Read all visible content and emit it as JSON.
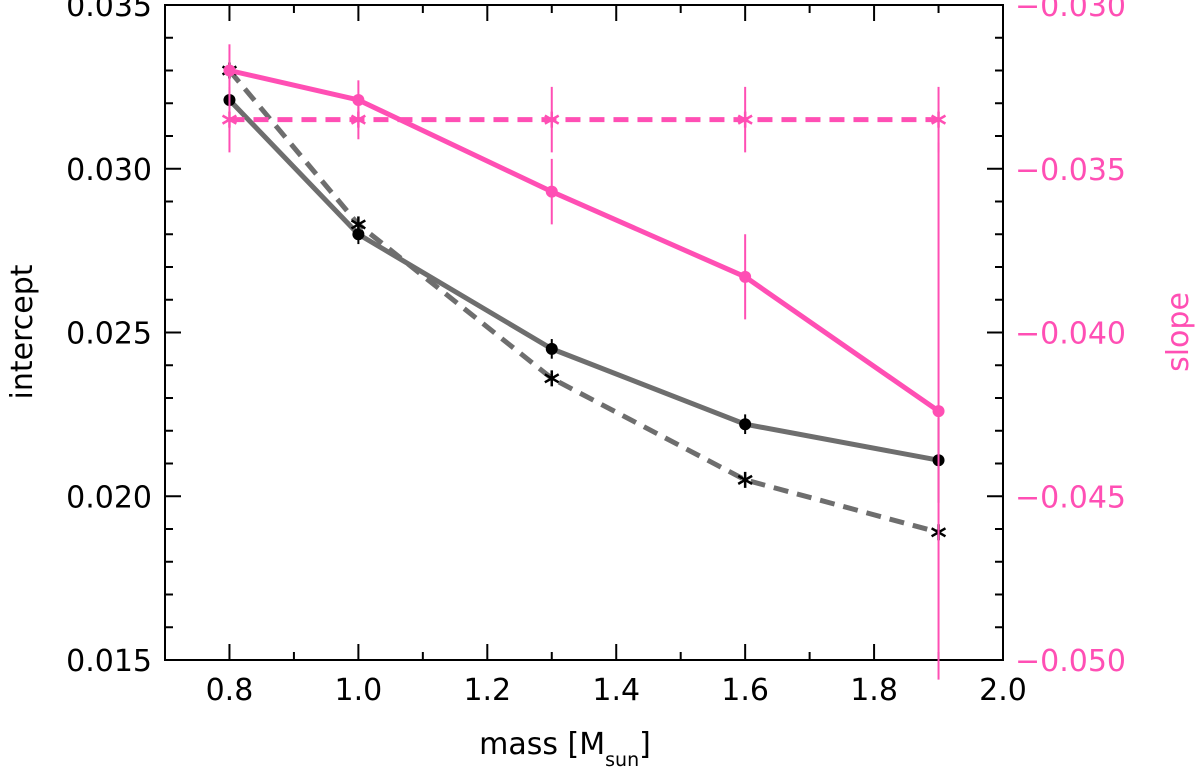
{
  "chart_data": {
    "type": "line",
    "xlabel": "mass [M",
    "xlabel_sub": "sun",
    "xlabel_close": "]",
    "ylabel_left": "intercept",
    "ylabel_right": "slope",
    "xlim": [
      0.7,
      2.0
    ],
    "ylim_left": [
      0.015,
      0.035
    ],
    "ylim_right": [
      -0.05,
      -0.03
    ],
    "x_ticks": [
      "0.8",
      "1.0",
      "1.2",
      "1.4",
      "1.6",
      "1.8",
      "2.0"
    ],
    "y_left_ticks": [
      "0.015",
      "0.020",
      "0.025",
      "0.030",
      "0.035"
    ],
    "y_right_ticks": [
      "−0.050",
      "−0.045",
      "−0.040",
      "−0.035",
      "−0.030"
    ],
    "grid": false,
    "colors": {
      "gray": "#6e6e6e",
      "black": "#000000",
      "pink": "#ff4fb4"
    },
    "series": [
      {
        "axis": "left",
        "style": "solid",
        "marker": "circle",
        "color": "gray",
        "marker_color": "black",
        "x": [
          0.8,
          1.0,
          1.3,
          1.6,
          1.9
        ],
        "y": [
          0.0321,
          0.028,
          0.0245,
          0.0222,
          0.0211
        ],
        "err": [
          0.0002,
          0.0003,
          0.0003,
          0.0003,
          0.0013
        ]
      },
      {
        "axis": "left",
        "style": "dashed",
        "marker": "asterisk",
        "color": "gray",
        "marker_color": "black",
        "x": [
          0.8,
          1.0,
          1.3,
          1.6,
          1.9
        ],
        "y": [
          0.033,
          0.0283,
          0.0236,
          0.0205,
          0.0189
        ],
        "err": [
          0,
          0,
          0,
          0,
          0
        ]
      },
      {
        "axis": "right",
        "style": "solid",
        "marker": "circle",
        "color": "pink",
        "marker_color": "pink",
        "x": [
          0.8,
          1.0,
          1.3,
          1.6,
          1.9
        ],
        "y": [
          -0.032,
          -0.0329,
          -0.0357,
          -0.0383,
          -0.0424
        ],
        "err": [
          0.0008,
          0.0006,
          0.001,
          0.0013,
          0.0082
        ]
      },
      {
        "axis": "right",
        "style": "dashed",
        "marker": "asterisk",
        "color": "pink",
        "marker_color": "pink",
        "x": [
          0.8,
          1.0,
          1.3,
          1.6,
          1.9
        ],
        "y": [
          -0.0335,
          -0.0335,
          -0.0335,
          -0.0335,
          -0.0335
        ],
        "err": [
          0.001,
          0.0006,
          0.001,
          0.001,
          0.001
        ]
      }
    ]
  }
}
